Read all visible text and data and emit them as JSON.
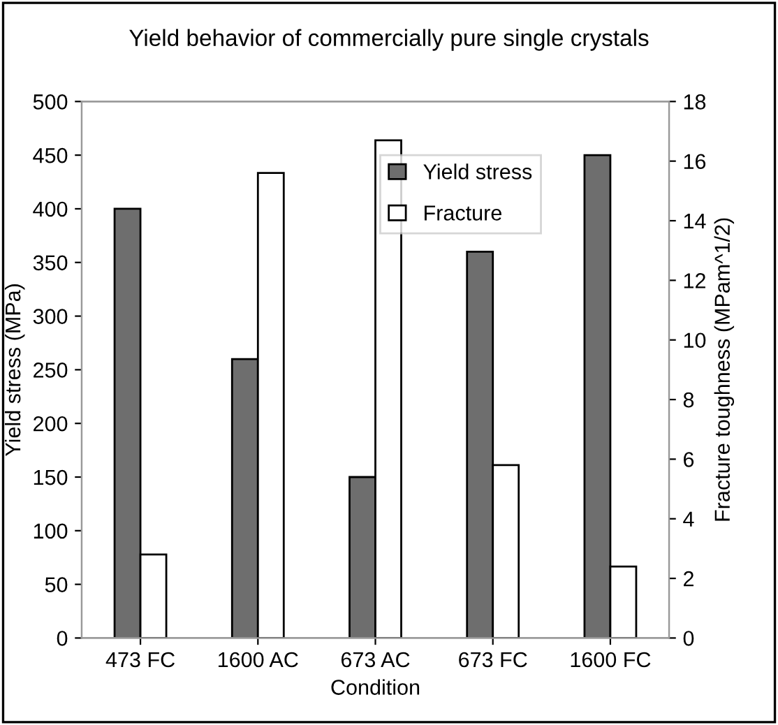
{
  "chart_data": {
    "type": "bar",
    "title": "Yield behavior of commercially pure single crystals",
    "xlabel": "Condition",
    "ylabel": "Yield stress (MPa)",
    "y2label": "Fracture toughness (MPam^1/2)",
    "categories": [
      "473 FC",
      "1600 AC",
      "673 AC",
      "673 FC",
      "1600 FC"
    ],
    "series": [
      {
        "name": "Yield stress",
        "color": "#6e6e6e",
        "values": [
          400,
          260,
          150,
          360,
          450
        ]
      },
      {
        "name": "Fracture",
        "color": "#ffffff",
        "axis": "y2",
        "values": [
          2.8,
          15.6,
          16.7,
          5.8,
          2.4
        ]
      }
    ],
    "ylim": [
      0,
      500
    ],
    "yticks": [
      0,
      50,
      100,
      150,
      200,
      250,
      300,
      350,
      400,
      450,
      500
    ],
    "y2lim": [
      0,
      18
    ],
    "y2ticks": [
      0,
      2,
      4,
      6,
      8,
      10,
      12,
      14,
      16,
      18
    ],
    "legend": "top right",
    "grid": false
  }
}
